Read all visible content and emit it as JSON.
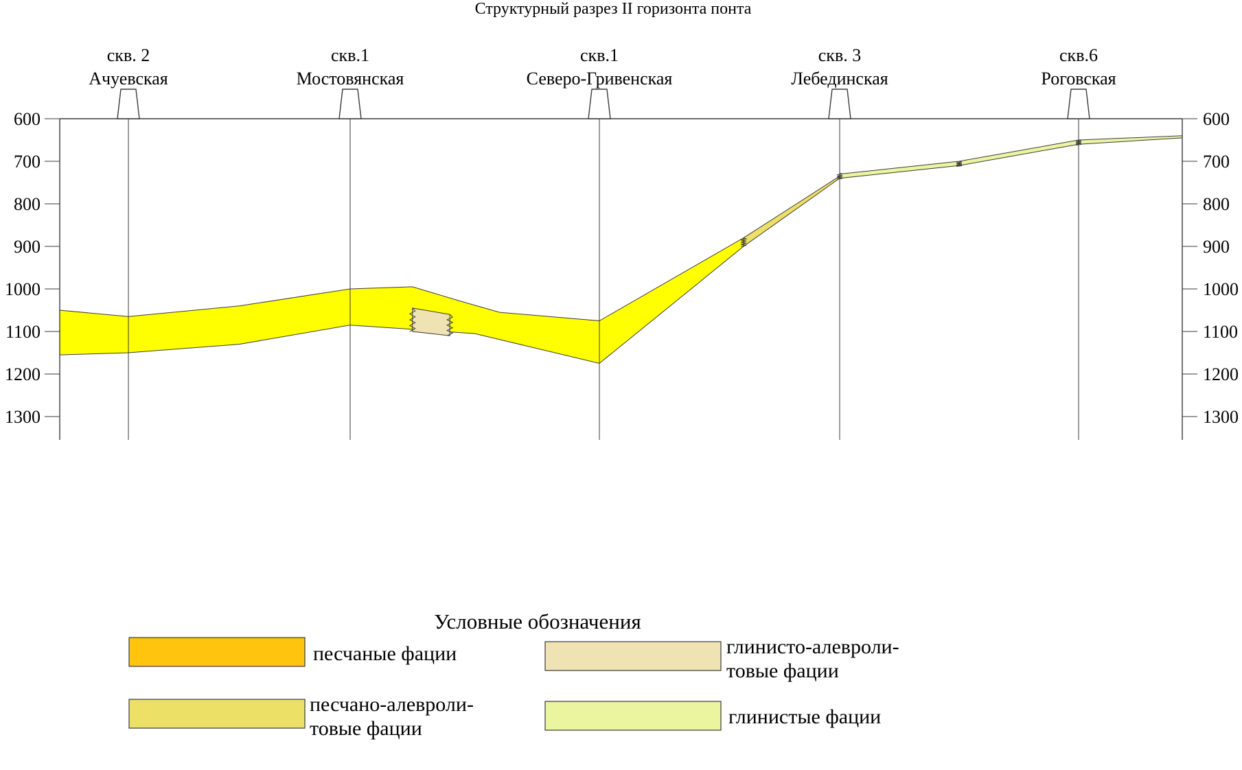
{
  "title": "Структурный разрез II горизонта понта",
  "colors": {
    "sand": "#ffff00",
    "sand_legend": "#ffc40d",
    "sand_silt": "#ede066",
    "clay_silt": "#efe3b3",
    "clay": "#ebf5a0",
    "line": "#3a3a3a"
  },
  "depth_axis": {
    "min": 600,
    "max": 1300,
    "ticks": [
      600,
      700,
      800,
      900,
      1000,
      1100,
      1200,
      1300
    ],
    "labels": [
      "600",
      "700",
      "800",
      "900",
      "1000",
      "1100",
      "1200",
      "1300"
    ]
  },
  "wells": [
    {
      "id": "w1",
      "label_top": "скв. 2",
      "label_bottom": "Ачуевская"
    },
    {
      "id": "w2",
      "label_top": "скв.1",
      "label_bottom": "Мостовянская"
    },
    {
      "id": "w3",
      "label_top": "скв.1",
      "label_bottom": "Северо-Гривенская"
    },
    {
      "id": "w4",
      "label_top": "скв. 3",
      "label_bottom": "Лебединская"
    },
    {
      "id": "w5",
      "label_top": "скв.6",
      "label_bottom": "Роговская"
    }
  ],
  "horizon": {
    "segments": [
      {
        "facies": "sand",
        "top": [
          [
            -1.0,
            1050
          ],
          [
            0.0,
            1065
          ],
          [
            0.5,
            1040
          ],
          [
            1.0,
            1000
          ],
          [
            1.25,
            995
          ],
          [
            1.45,
            1030
          ],
          [
            1.6,
            1055
          ],
          [
            2.0,
            1075
          ]
        ],
        "bottom": [
          [
            -1.0,
            1155
          ],
          [
            0.0,
            1150
          ],
          [
            0.5,
            1130
          ],
          [
            1.0,
            1085
          ],
          [
            1.5,
            1105
          ],
          [
            2.0,
            1175
          ]
        ]
      },
      {
        "facies": "clay_silt",
        "top": [
          [
            1.25,
            1045
          ],
          [
            1.4,
            1060
          ]
        ],
        "bottom": [
          [
            1.25,
            1100
          ],
          [
            1.4,
            1110
          ]
        ]
      },
      {
        "facies": "sand",
        "top": [
          [
            2.0,
            1075
          ],
          [
            2.6,
            880
          ]
        ],
        "bottom": [
          [
            2.0,
            1175
          ],
          [
            2.6,
            900
          ]
        ]
      },
      {
        "facies": "sand_silt",
        "top": [
          [
            2.6,
            880
          ],
          [
            3.0,
            735
          ]
        ],
        "bottom": [
          [
            2.6,
            900
          ],
          [
            3.0,
            740
          ]
        ]
      },
      {
        "facies": "clay",
        "top": [
          [
            3.0,
            730
          ],
          [
            3.5,
            700
          ],
          [
            4.0,
            650
          ],
          [
            4.4,
            640
          ]
        ],
        "bottom": [
          [
            3.0,
            740
          ],
          [
            3.5,
            710
          ],
          [
            4.0,
            660
          ],
          [
            4.4,
            645
          ]
        ]
      }
    ]
  },
  "legend": {
    "title": "Условные обозначения",
    "items": [
      {
        "facies": "sand",
        "lines": [
          "песчаные фации"
        ]
      },
      {
        "facies": "clay_silt",
        "lines": [
          "глинисто-алевроли-",
          "товые фации"
        ]
      },
      {
        "facies": "sand_silt",
        "lines": [
          "песчано-алевроли-",
          "товые фации"
        ]
      },
      {
        "facies": "clay",
        "lines": [
          "глинистые фации"
        ]
      }
    ]
  }
}
